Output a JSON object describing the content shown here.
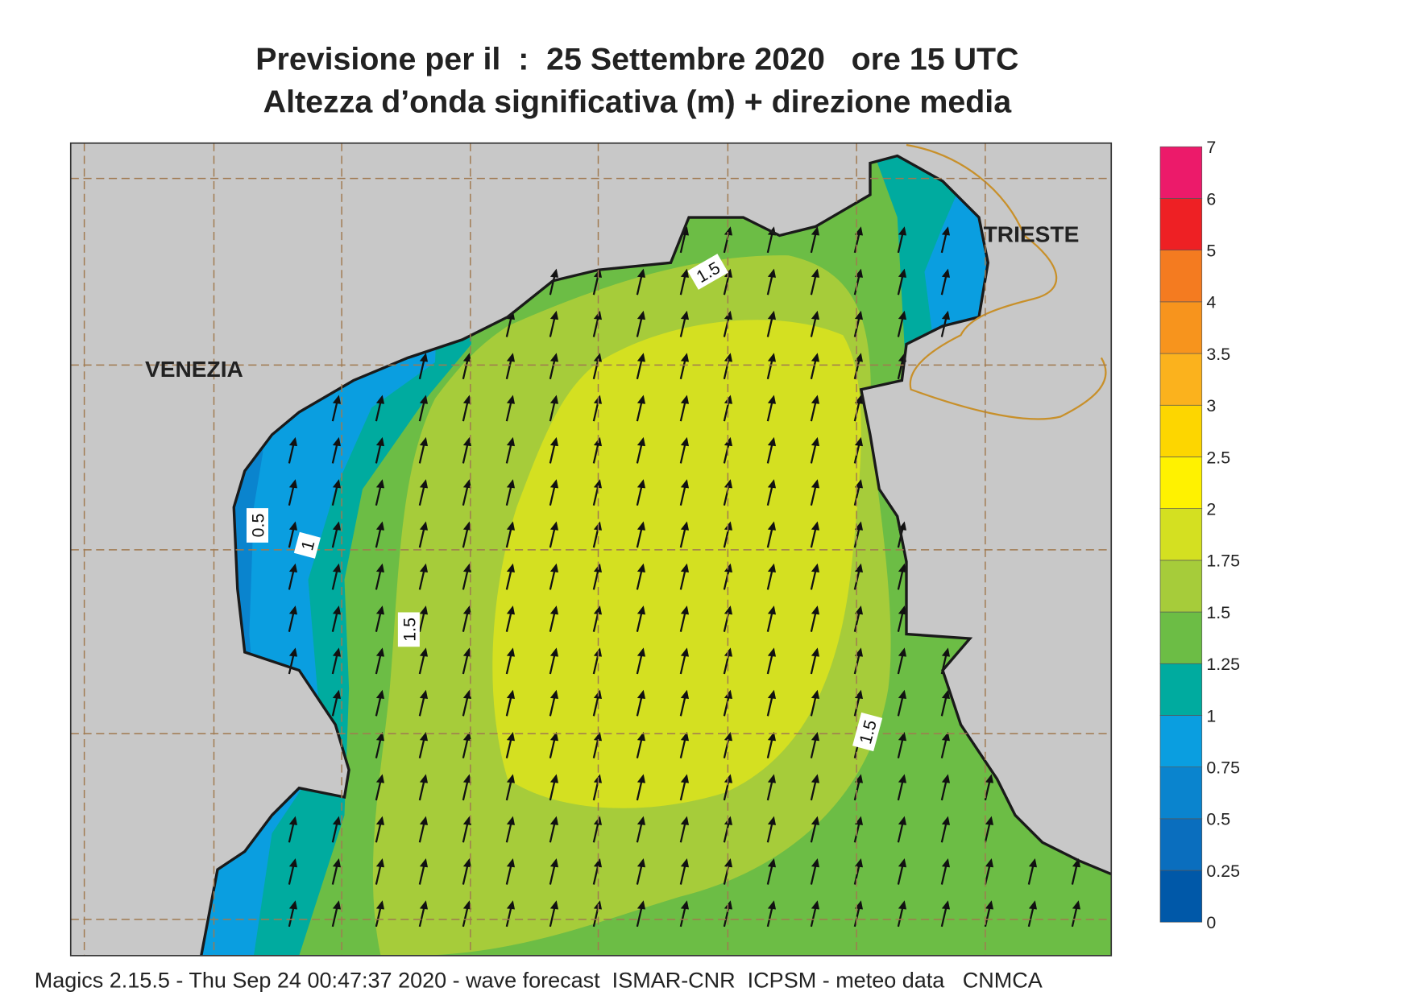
{
  "header": {
    "title": "Previsione per il  :  25 Settembre 2020   ore 15 UTC",
    "subtitle": "Altezza d’onda significativa (m) + direzione media"
  },
  "map": {
    "places": [
      "VENEZIA",
      "TRIESTE"
    ],
    "contour_labels": [
      "1.5",
      "0.5",
      "1",
      "1.5",
      "1.5"
    ]
  },
  "legend": {
    "labels": [
      0,
      0.25,
      0.5,
      0.75,
      1,
      1.25,
      1.5,
      1.75,
      2,
      2.5,
      3,
      3.5,
      4,
      5,
      6,
      7
    ],
    "colors": [
      "#0058a8",
      "#0a6ebe",
      "#0a84ce",
      "#0a9ee0",
      "#00ab9f",
      "#6cbd45",
      "#a6cc3a",
      "#d4e021",
      "#fff200",
      "#fdd600",
      "#fbb21d",
      "#f7941d",
      "#f47b20",
      "#ee2024",
      "#ec1a6a"
    ]
  },
  "footer": "Magics 2.15.5 - Thu Sep 24 00:47:37 2020 - wave forecast  ISMAR-CNR  ICPSM - meteo data   CNMCA"
}
